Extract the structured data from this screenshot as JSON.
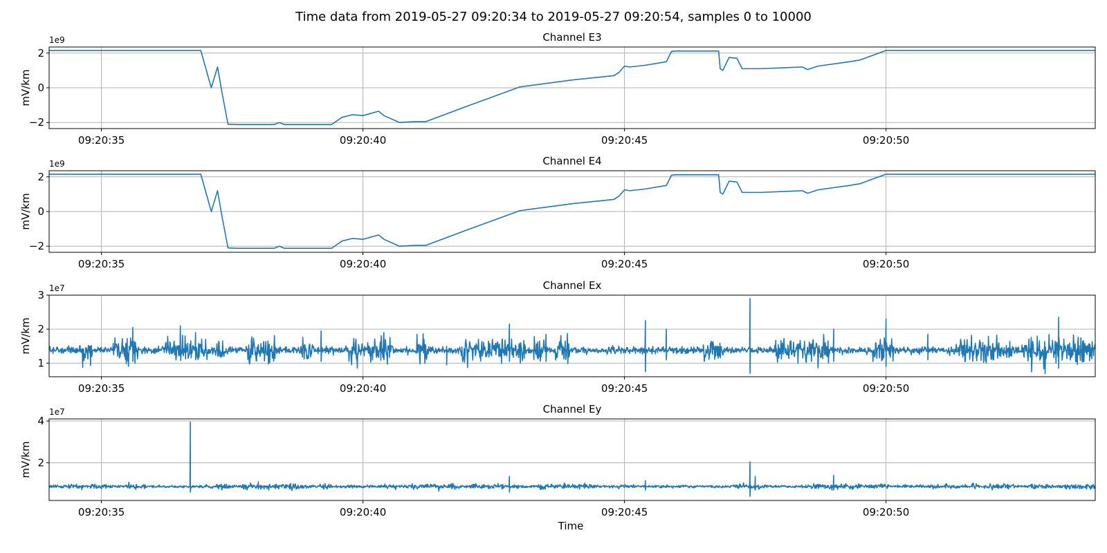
{
  "chart_data": {
    "type": "line",
    "title": "Time data from 2019-05-27 09:20:34 to 2019-05-27 09:20:54, samples 0 to 10000",
    "xlabel": "Time",
    "line_color": "#1f77b4",
    "grid": true,
    "xlim": [
      "09:20:34.000",
      "09:20:54.000"
    ],
    "xticks": [
      "09:20:35",
      "09:20:40",
      "09:20:45",
      "09:20:50"
    ],
    "panels": [
      {
        "title": "Channel E3",
        "ylabel": "mV/km",
        "offset_label": "1e9",
        "ylim": [
          -2.35,
          2.35
        ],
        "yticks": [
          {
            "v": 2,
            "label": "2"
          },
          {
            "v": 0,
            "label": "0"
          },
          {
            "v": -2,
            "label": "−2"
          }
        ],
        "kind": "smooth",
        "x": [
          "09:20:34.000",
          "09:20:36.900",
          "09:20:37.100",
          "09:20:37.220",
          "09:20:37.300",
          "09:20:37.420",
          "09:20:37.600",
          "09:20:38.300",
          "09:20:38.400",
          "09:20:38.500",
          "09:20:39.400",
          "09:20:39.600",
          "09:20:39.800",
          "09:20:40.000",
          "09:20:40.300",
          "09:20:40.400",
          "09:20:40.700",
          "09:20:41.000",
          "09:20:41.200",
          "09:20:42.000",
          "09:20:43.000",
          "09:20:44.000",
          "09:20:44.800",
          "09:20:44.900",
          "09:20:45.000",
          "09:20:45.100",
          "09:20:45.400",
          "09:20:45.800",
          "09:20:45.900",
          "09:20:46.000",
          "09:20:46.300",
          "09:20:46.800",
          "09:20:46.830",
          "09:20:46.880",
          "09:20:47.000",
          "09:20:47.150",
          "09:20:47.250",
          "09:20:47.600",
          "09:20:48.400",
          "09:20:48.500",
          "09:20:48.700",
          "09:20:49.300",
          "09:20:49.500",
          "09:20:50.000",
          "09:20:54.000"
        ],
        "y": [
          2.15,
          2.15,
          0.0,
          1.2,
          -0.2,
          -2.1,
          -2.12,
          -2.12,
          -2.0,
          -2.12,
          -2.12,
          -1.7,
          -1.55,
          -1.6,
          -1.35,
          -1.6,
          -2.0,
          -1.95,
          -1.95,
          -1.05,
          0.05,
          0.45,
          0.7,
          0.9,
          1.25,
          1.2,
          1.3,
          1.5,
          2.1,
          2.12,
          2.12,
          2.12,
          1.1,
          1.0,
          1.75,
          1.7,
          1.1,
          1.1,
          1.2,
          1.05,
          1.25,
          1.5,
          1.6,
          2.15,
          2.15
        ]
      },
      {
        "title": "Channel E4",
        "ylabel": "mV/km",
        "offset_label": "1e9",
        "ylim": [
          -2.35,
          2.35
        ],
        "yticks": [
          {
            "v": 2,
            "label": "2"
          },
          {
            "v": 0,
            "label": "0"
          },
          {
            "v": -2,
            "label": "−2"
          }
        ],
        "kind": "smooth",
        "x": [
          "09:20:34.000",
          "09:20:36.900",
          "09:20:37.100",
          "09:20:37.220",
          "09:20:37.300",
          "09:20:37.420",
          "09:20:37.600",
          "09:20:38.300",
          "09:20:38.400",
          "09:20:38.500",
          "09:20:39.400",
          "09:20:39.600",
          "09:20:39.800",
          "09:20:40.000",
          "09:20:40.300",
          "09:20:40.400",
          "09:20:40.700",
          "09:20:41.000",
          "09:20:41.200",
          "09:20:42.000",
          "09:20:43.000",
          "09:20:44.000",
          "09:20:44.800",
          "09:20:44.900",
          "09:20:45.000",
          "09:20:45.100",
          "09:20:45.400",
          "09:20:45.800",
          "09:20:45.900",
          "09:20:46.000",
          "09:20:46.300",
          "09:20:46.800",
          "09:20:46.830",
          "09:20:46.880",
          "09:20:47.000",
          "09:20:47.150",
          "09:20:47.250",
          "09:20:47.600",
          "09:20:48.400",
          "09:20:48.500",
          "09:20:48.700",
          "09:20:49.300",
          "09:20:49.500",
          "09:20:50.000",
          "09:20:54.000"
        ],
        "y": [
          2.15,
          2.15,
          0.0,
          1.2,
          -0.2,
          -2.1,
          -2.12,
          -2.12,
          -2.0,
          -2.12,
          -2.12,
          -1.7,
          -1.55,
          -1.6,
          -1.35,
          -1.6,
          -2.0,
          -1.95,
          -1.95,
          -1.05,
          0.05,
          0.45,
          0.7,
          0.9,
          1.25,
          1.2,
          1.3,
          1.5,
          2.1,
          2.12,
          2.12,
          2.12,
          1.1,
          1.0,
          1.75,
          1.7,
          1.1,
          1.1,
          1.2,
          1.05,
          1.25,
          1.5,
          1.6,
          2.15,
          2.15
        ]
      },
      {
        "title": "Channel Ex",
        "ylabel": "mV/km",
        "offset_label": "1e7",
        "ylim": [
          0.6,
          3.0
        ],
        "yticks": [
          {
            "v": 3,
            "label": "3"
          },
          {
            "v": 2,
            "label": "2"
          },
          {
            "v": 1,
            "label": "1"
          }
        ],
        "kind": "noise",
        "baseline": 1.38,
        "noise": 0.05,
        "burst": 0.18,
        "seed": 7,
        "spikes": [
          [
            "09:20:35.600",
            2.05,
            1.05
          ],
          [
            "09:20:36.800",
            1.9,
            1.1
          ],
          [
            "09:20:39.200",
            1.95,
            1.05
          ],
          [
            "09:20:40.400",
            1.9,
            1.1
          ],
          [
            "09:20:41.600",
            1.5,
            0.95
          ],
          [
            "09:20:42.800",
            2.15,
            1.05
          ],
          [
            "09:20:43.500",
            1.85,
            1.05
          ],
          [
            "09:20:45.400",
            2.25,
            0.75
          ],
          [
            "09:20:45.800",
            2.0,
            1.1
          ],
          [
            "09:20:47.400",
            2.9,
            0.7
          ],
          [
            "09:20:49.000",
            2.0,
            1.05
          ],
          [
            "09:20:50.000",
            2.3,
            0.9
          ],
          [
            "09:20:50.800",
            1.85,
            1.1
          ],
          [
            "09:20:53.300",
            2.35,
            0.85
          ]
        ]
      },
      {
        "title": "Channel Ey",
        "ylabel": "mV/km",
        "offset_label": "1e7",
        "ylim": [
          0.2,
          4.1
        ],
        "yticks": [
          {
            "v": 4,
            "label": "4"
          },
          {
            "v": 2,
            "label": "2"
          }
        ],
        "kind": "noise",
        "baseline": 0.87,
        "noise": 0.03,
        "burst": 0.06,
        "seed": 13,
        "spikes": [
          [
            "09:20:36.700",
            3.95,
            0.6
          ],
          [
            "09:20:38.000",
            1.1,
            0.75
          ],
          [
            "09:20:42.800",
            1.35,
            0.6
          ],
          [
            "09:20:45.400",
            1.15,
            0.7
          ],
          [
            "09:20:47.400",
            2.05,
            0.4
          ],
          [
            "09:20:47.500",
            1.35,
            0.7
          ],
          [
            "09:20:49.000",
            1.4,
            0.7
          ]
        ]
      }
    ]
  }
}
